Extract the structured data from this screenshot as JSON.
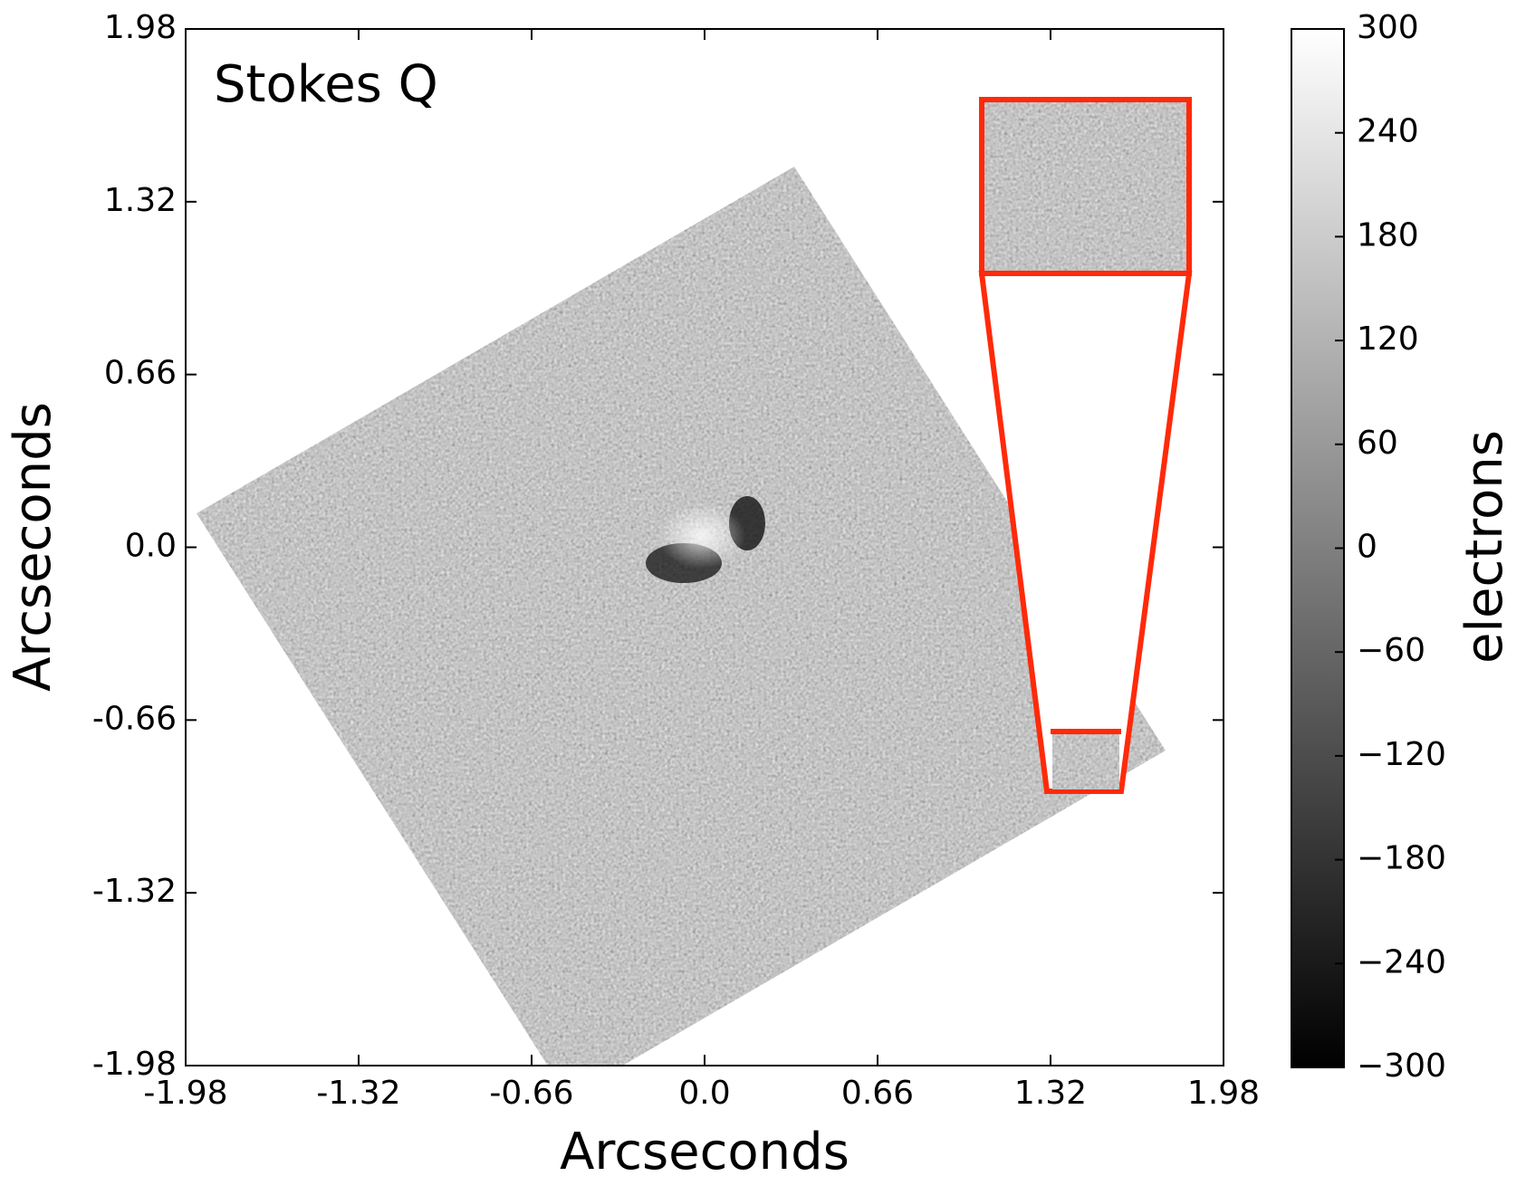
{
  "chart_data": {
    "type": "image",
    "title": "Stokes Q",
    "xlabel": "Arcseconds",
    "ylabel": "Arcseconds",
    "xlim": [
      -1.98,
      1.98
    ],
    "ylim": [
      -1.98,
      1.98
    ],
    "xticks": [
      -1.98,
      -1.32,
      -0.66,
      {
        "value": 0,
        "label": "0.0"
      },
      0.66,
      1.32,
      1.98
    ],
    "yticks": [
      -1.98,
      -1.32,
      -0.66,
      {
        "value": 0,
        "label": "0.0"
      },
      0.66,
      1.32,
      1.98
    ],
    "cmap": "gray",
    "colorbar": {
      "label": "electrons",
      "lim": [
        -300,
        300
      ],
      "ticks": [
        {
          "value": -300,
          "label": "−300"
        },
        {
          "value": -240,
          "label": "−240"
        },
        {
          "value": -180,
          "label": "−180"
        },
        {
          "value": -120,
          "label": "−120"
        },
        {
          "value": -60,
          "label": "−60"
        },
        0,
        60,
        120,
        180,
        240,
        300
      ]
    }
  }
}
